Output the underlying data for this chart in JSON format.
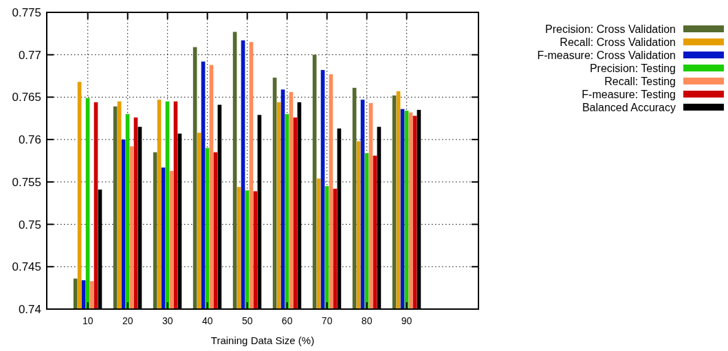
{
  "chart_data": {
    "type": "bar",
    "xlabel": "Training Data Size (%)",
    "categories": [
      "10",
      "20",
      "30",
      "40",
      "50",
      "60",
      "70",
      "80",
      "90"
    ],
    "series": [
      {
        "name": "Precision: Cross Validation",
        "color": "#556b2f",
        "values": [
          0.7436,
          0.7639,
          0.7585,
          0.7709,
          0.7727,
          0.7673,
          0.77,
          0.7661,
          0.7652
        ]
      },
      {
        "name": "Recall: Cross Validation",
        "color": "#e69f00",
        "values": [
          0.7668,
          0.7645,
          0.7647,
          0.7608,
          0.7544,
          0.7644,
          0.7554,
          0.7598,
          0.7657
        ]
      },
      {
        "name": "F-measure: Cross Validation",
        "color": "#0018c8",
        "values": [
          0.7434,
          0.76,
          0.7567,
          0.7692,
          0.7717,
          0.7659,
          0.7682,
          0.7647,
          0.7636
        ]
      },
      {
        "name": "Precision: Testing",
        "color": "#1ccd00",
        "values": [
          0.7649,
          0.763,
          0.7645,
          0.759,
          0.754,
          0.763,
          0.7545,
          0.7584,
          0.7634
        ]
      },
      {
        "name": "Recall: Testing",
        "color": "#ff8c5a",
        "values": [
          0.7433,
          0.7592,
          0.7563,
          0.7688,
          0.7715,
          0.7656,
          0.7677,
          0.7643,
          0.7632
        ]
      },
      {
        "name": "F-measure: Testing",
        "color": "#cc0000",
        "values": [
          0.7644,
          0.7626,
          0.7645,
          0.7585,
          0.7539,
          0.7626,
          0.7542,
          0.7581,
          0.7628
        ]
      },
      {
        "name": "Balanced Accuracy",
        "color": "#000000",
        "values": [
          0.7541,
          0.7615,
          0.7607,
          0.7641,
          0.7629,
          0.7644,
          0.7613,
          0.7615,
          0.7635
        ]
      }
    ],
    "ylim": [
      0.74,
      0.775
    ],
    "yticks": [
      0.74,
      0.745,
      0.75,
      0.755,
      0.76,
      0.765,
      0.77,
      0.775
    ],
    "grid": true,
    "legend": "top right"
  }
}
